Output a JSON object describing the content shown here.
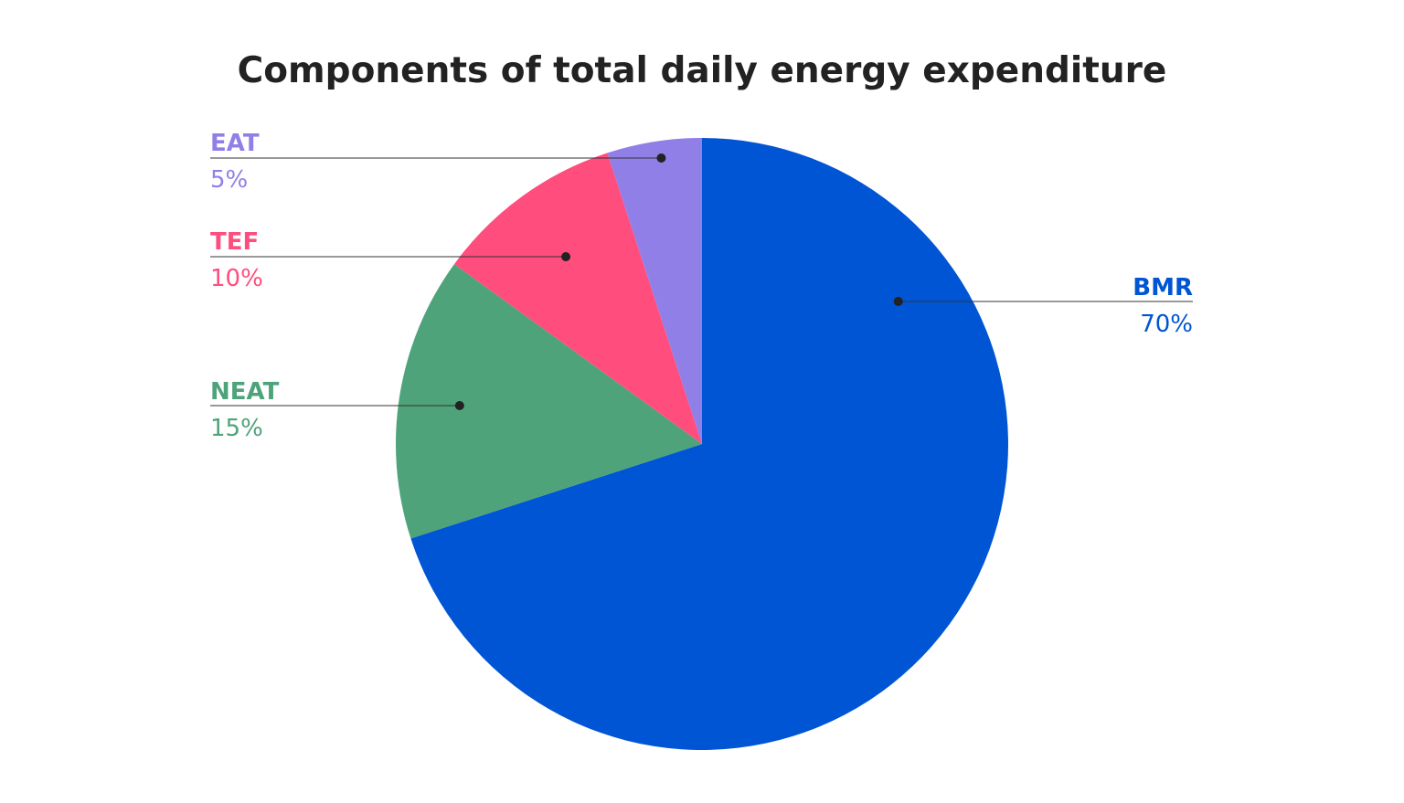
{
  "chart_data": {
    "type": "pie",
    "title": "Components of total daily energy expenditure",
    "categories": [
      "BMR",
      "NEAT",
      "TEF",
      "EAT"
    ],
    "values": [
      70,
      15,
      10,
      5
    ],
    "value_labels": [
      "70%",
      "15%",
      "10%",
      "5%"
    ],
    "colors": [
      "#0055d4",
      "#4ea37a",
      "#ff4d7e",
      "#917fe8"
    ]
  }
}
